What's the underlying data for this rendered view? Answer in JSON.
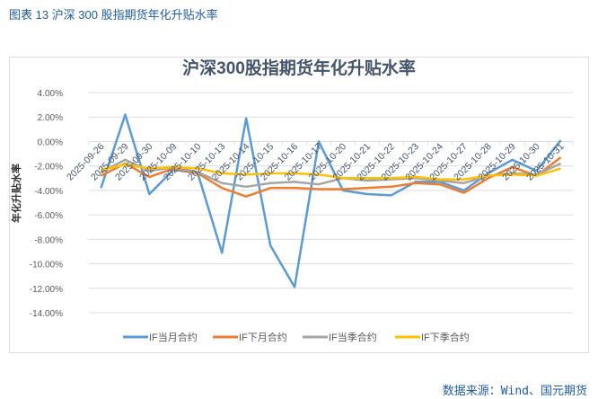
{
  "header": "图表 13  沪深 300 股指期货年化升贴水率",
  "source": "数据来源：Wind、国元期货",
  "chart_data": {
    "type": "line",
    "title": "沪深300股指期货年化升贴水率",
    "ylabel": "年化升贴水率",
    "xlabel": "",
    "ylim": [
      -14,
      4
    ],
    "yticks": [
      "4.00%",
      "2.00%",
      "0.00%",
      "-2.00%",
      "-4.00%",
      "-6.00%",
      "-8.00%",
      "-10.00%",
      "-12.00%",
      "-14.00%"
    ],
    "grid": true,
    "legend": "bottom",
    "categories": [
      "2025-09-26",
      "2025-09-29",
      "2025-09-30",
      "2025-10-09",
      "2025-10-10",
      "2025-10-13",
      "2025-10-14",
      "2025-10-15",
      "2025-10-16",
      "2025-10-17",
      "2025-10-20",
      "2025-10-21",
      "2025-10-22",
      "2025-10-23",
      "2025-10-24",
      "2025-10-27",
      "2025-10-28",
      "2025-10-29",
      "2025-10-30",
      "2025-10-31"
    ],
    "series": [
      {
        "name": "IF当月合约",
        "color": "#5b9bd5",
        "values": [
          -3.8,
          2.2,
          -4.3,
          -2.3,
          -2.6,
          -9.1,
          1.9,
          -8.5,
          -11.9,
          0.0,
          -4.0,
          -4.3,
          -4.4,
          -3.3,
          -3.3,
          -4.0,
          -2.6,
          -1.5,
          -2.4,
          0.1
        ]
      },
      {
        "name": "IF下月合约",
        "color": "#ed7d31",
        "values": [
          -2.8,
          -1.8,
          -2.9,
          -2.2,
          -2.6,
          -3.8,
          -4.5,
          -3.8,
          -3.8,
          -3.9,
          -3.9,
          -3.8,
          -3.7,
          -3.4,
          -3.5,
          -4.2,
          -3.0,
          -2.1,
          -2.8,
          -1.3
        ]
      },
      {
        "name": "IF当季合约",
        "color": "#a5a5a5",
        "values": [
          -2.5,
          -1.5,
          -2.4,
          -2.1,
          -2.5,
          -3.4,
          -3.7,
          -3.4,
          -3.3,
          -3.5,
          -3.0,
          -3.2,
          -3.1,
          -3.0,
          -3.2,
          -3.4,
          -2.8,
          -2.6,
          -2.7,
          -1.8
        ]
      },
      {
        "name": "IF下季合约",
        "color": "#ffc000",
        "values": [
          -2.3,
          -1.9,
          -2.2,
          -2.1,
          -2.2,
          -2.6,
          -2.7,
          -2.6,
          -2.6,
          -2.7,
          -3.0,
          -3.0,
          -3.0,
          -2.9,
          -3.1,
          -3.1,
          -2.8,
          -2.7,
          -2.8,
          -2.2
        ]
      }
    ]
  }
}
